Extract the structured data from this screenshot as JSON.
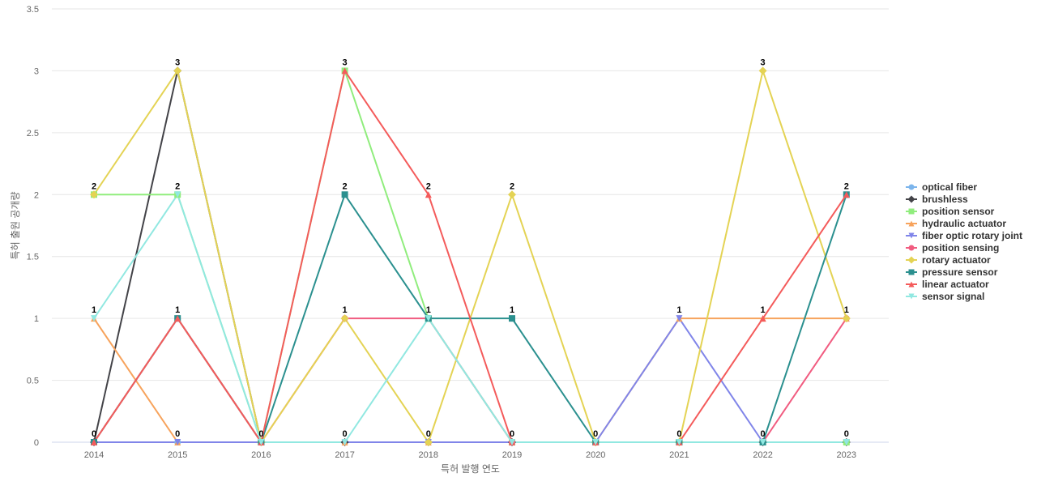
{
  "chart_data": {
    "type": "line",
    "title": "",
    "xlabel": "특허 발행 연도",
    "ylabel": "특허 출원 공개량",
    "ylim": [
      0,
      3.5
    ],
    "yticks": [
      "0",
      "0.5",
      "1",
      "1.5",
      "2",
      "2.5",
      "3",
      "3.5"
    ],
    "ytick_values": [
      0,
      0.5,
      1,
      1.5,
      2,
      2.5,
      3,
      3.5
    ],
    "categories": [
      "2014",
      "2015",
      "2016",
      "2017",
      "2018",
      "2019",
      "2020",
      "2021",
      "2022",
      "2023"
    ],
    "grid": true,
    "legend_position": "right",
    "series": [
      {
        "name": "optical fiber",
        "color": "#7cb5ec",
        "marker": "circle",
        "values": [
          0,
          0,
          0,
          0,
          0,
          0,
          0,
          0,
          0,
          0
        ]
      },
      {
        "name": "brushless",
        "color": "#434348",
        "marker": "diamond",
        "values": [
          0,
          3,
          0,
          0,
          0,
          0,
          0,
          0,
          0,
          0
        ]
      },
      {
        "name": "position sensor",
        "color": "#90ed7d",
        "marker": "square",
        "values": [
          2,
          2,
          0,
          3,
          1,
          0,
          0,
          0,
          0,
          0
        ]
      },
      {
        "name": "hydraulic actuator",
        "color": "#f7a35c",
        "marker": "triangle",
        "values": [
          1,
          0,
          0,
          0,
          0,
          0,
          0,
          1,
          1,
          1
        ]
      },
      {
        "name": "fiber optic rotary joint",
        "color": "#8085e9",
        "marker": "triangle-down",
        "values": [
          0,
          0,
          0,
          0,
          0,
          0,
          0,
          1,
          0,
          0
        ]
      },
      {
        "name": "position sensing",
        "color": "#f15c80",
        "marker": "circle",
        "values": [
          0,
          1,
          0,
          1,
          1,
          0,
          0,
          0,
          0,
          1
        ]
      },
      {
        "name": "rotary actuator",
        "color": "#e4d354",
        "marker": "diamond",
        "values": [
          2,
          3,
          0,
          1,
          0,
          2,
          0,
          0,
          3,
          1
        ]
      },
      {
        "name": "pressure sensor",
        "color": "#2b908f",
        "marker": "square",
        "values": [
          0,
          1,
          0,
          2,
          1,
          1,
          0,
          0,
          0,
          2
        ]
      },
      {
        "name": "linear actuator",
        "color": "#f45b5b",
        "marker": "triangle",
        "values": [
          0,
          1,
          0,
          3,
          2,
          0,
          0,
          0,
          1,
          2
        ]
      },
      {
        "name": "sensor signal",
        "color": "#91e8e1",
        "marker": "triangle-down",
        "values": [
          1,
          2,
          0,
          0,
          1,
          0,
          0,
          0,
          0,
          0
        ]
      }
    ],
    "data_labels": [
      {
        "category": "2014",
        "text": "2",
        "value": 2
      },
      {
        "category": "2014",
        "text": "1",
        "value": 1
      },
      {
        "category": "2014",
        "text": "0",
        "value": 0
      },
      {
        "category": "2015",
        "text": "3",
        "value": 3
      },
      {
        "category": "2015",
        "text": "2",
        "value": 2
      },
      {
        "category": "2015",
        "text": "1",
        "value": 1
      },
      {
        "category": "2015",
        "text": "0",
        "value": 0
      },
      {
        "category": "2016",
        "text": "0",
        "value": 0
      },
      {
        "category": "2017",
        "text": "3",
        "value": 3
      },
      {
        "category": "2017",
        "text": "2",
        "value": 2
      },
      {
        "category": "2017",
        "text": "1",
        "value": 1
      },
      {
        "category": "2017",
        "text": "0",
        "value": 0
      },
      {
        "category": "2018",
        "text": "2",
        "value": 2
      },
      {
        "category": "2018",
        "text": "1",
        "value": 1
      },
      {
        "category": "2018",
        "text": "0",
        "value": 0
      },
      {
        "category": "2019",
        "text": "2",
        "value": 2
      },
      {
        "category": "2019",
        "text": "1",
        "value": 1
      },
      {
        "category": "2019",
        "text": "0",
        "value": 0
      },
      {
        "category": "2020",
        "text": "0",
        "value": 0
      },
      {
        "category": "2021",
        "text": "1",
        "value": 1
      },
      {
        "category": "2021",
        "text": "0",
        "value": 0
      },
      {
        "category": "2022",
        "text": "3",
        "value": 3
      },
      {
        "category": "2022",
        "text": "1",
        "value": 1
      },
      {
        "category": "2022",
        "text": "0",
        "value": 0
      },
      {
        "category": "2023",
        "text": "2",
        "value": 2
      },
      {
        "category": "2023",
        "text": "1",
        "value": 1
      },
      {
        "category": "2023",
        "text": "0",
        "value": 0
      }
    ]
  }
}
